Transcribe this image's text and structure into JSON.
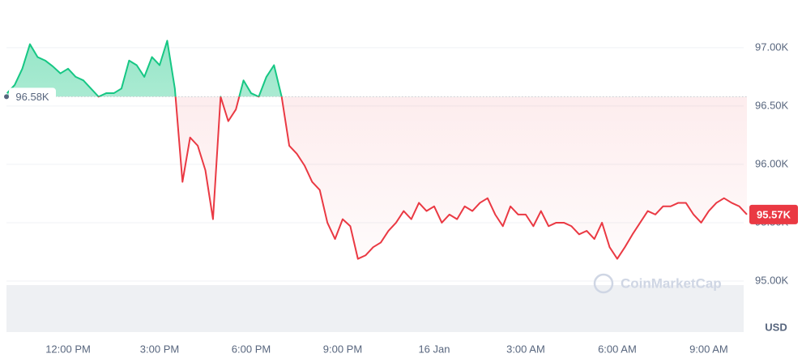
{
  "chart_data": {
    "type": "baseline-line",
    "categories": [
      null,
      null,
      null,
      null,
      null,
      null,
      null,
      null,
      "12:00 PM",
      null,
      null,
      null,
      null,
      null,
      null,
      null,
      null,
      null,
      null,
      null,
      "3:00 PM",
      null,
      null,
      null,
      null,
      null,
      null,
      null,
      null,
      null,
      null,
      null,
      "6:00 PM",
      null,
      null,
      null,
      null,
      null,
      null,
      null,
      null,
      null,
      null,
      null,
      "9:00 PM",
      null,
      null,
      null,
      null,
      null,
      null,
      null,
      null,
      null,
      null,
      null,
      "16 Jan",
      null,
      null,
      null,
      null,
      null,
      null,
      null,
      null,
      null,
      null,
      null,
      "3:00 AM",
      null,
      null,
      null,
      null,
      null,
      null,
      null,
      null,
      null,
      null,
      null,
      "6:00 AM",
      null,
      null,
      null,
      null,
      null,
      null,
      null,
      null,
      null,
      null,
      null,
      "9:00 AM",
      null,
      null,
      null,
      null,
      null
    ],
    "values": [
      96610,
      96680,
      96820,
      97030,
      96920,
      96890,
      96840,
      96780,
      96820,
      96750,
      96720,
      96650,
      96580,
      96610,
      96610,
      96650,
      96890,
      96850,
      96750,
      96920,
      96850,
      97060,
      96650,
      95850,
      96230,
      96160,
      95950,
      95530,
      96580,
      96370,
      96470,
      96720,
      96610,
      96580,
      96750,
      96850,
      96580,
      96160,
      96090,
      95990,
      95850,
      95780,
      95500,
      95360,
      95530,
      95470,
      95190,
      95220,
      95290,
      95330,
      95430,
      95500,
      95600,
      95530,
      95670,
      95600,
      95640,
      95500,
      95570,
      95530,
      95640,
      95600,
      95670,
      95710,
      95570,
      95470,
      95640,
      95570,
      95570,
      95470,
      95600,
      95470,
      95500,
      95500,
      95470,
      95400,
      95430,
      95360,
      95500,
      95290,
      95190,
      95290,
      95400,
      95500,
      95600,
      95570,
      95640,
      95640,
      95670,
      95670,
      95570,
      95500,
      95600,
      95670,
      95710,
      95670,
      95640,
      95570
    ],
    "baseline": {
      "value": 96580,
      "label": "96.58K"
    },
    "last_price": {
      "value": 95570,
      "label": "95.57K"
    },
    "up_color": "#16c784",
    "down_color": "#ea3943",
    "ylim": [
      94840,
      97270
    ],
    "yticks": [
      {
        "value": 95000,
        "label": "95.00K"
      },
      {
        "value": 95500,
        "label": "95.50K"
      },
      {
        "value": 96000,
        "label": "96.00K"
      },
      {
        "value": 96500,
        "label": "96.50K"
      },
      {
        "value": 97000,
        "label": "97.00K"
      }
    ],
    "grid": true,
    "y_unit": "USD",
    "watermark": "CoinMarketCap"
  }
}
